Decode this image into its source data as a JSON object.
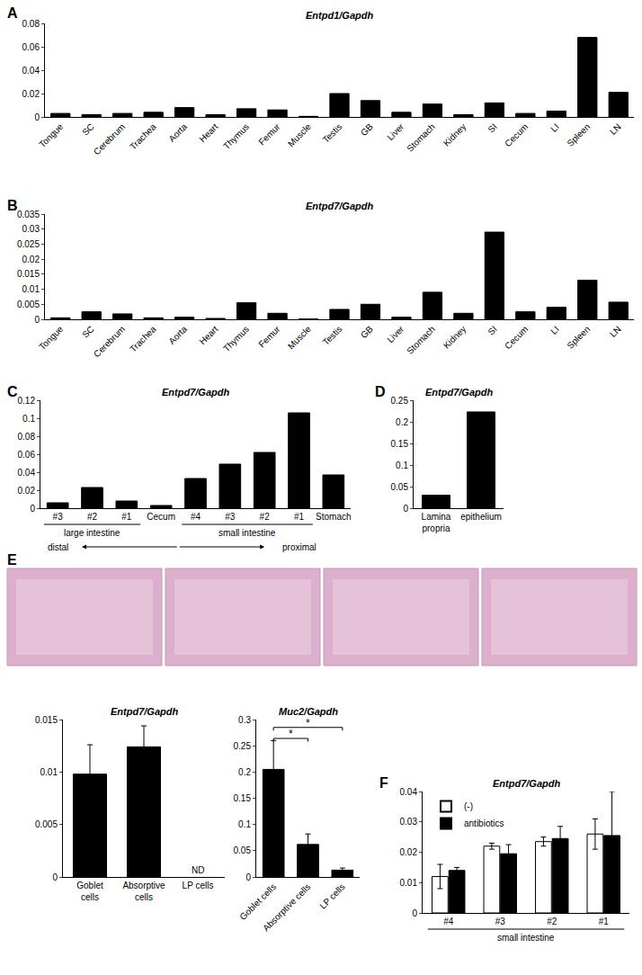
{
  "chart_data": [
    {
      "type": "bar",
      "panel": "A",
      "title": "Entpd1/Gapdh",
      "categories": [
        "Tongue",
        "SC",
        "Cerebrum",
        "Trachea",
        "Aorta",
        "Heart",
        "Thymus",
        "Femur",
        "Muscle",
        "Testis",
        "GB",
        "Liver",
        "Stomach",
        "Kidney",
        "SI",
        "Cecum",
        "LI",
        "Spleen",
        "LN"
      ],
      "values": [
        0.003,
        0.002,
        0.003,
        0.004,
        0.008,
        0.002,
        0.007,
        0.006,
        0.0005,
        0.02,
        0.014,
        0.004,
        0.011,
        0.002,
        0.012,
        0.003,
        0.005,
        0.068,
        0.021
      ],
      "color": "#000000",
      "ylim": [
        0,
        0.08
      ],
      "yticks": [
        0,
        0.02,
        0.04,
        0.06,
        0.08
      ],
      "grid": false
    },
    {
      "type": "bar",
      "panel": "B",
      "title": "Entpd7/Gapdh",
      "categories": [
        "Tongue",
        "SC",
        "Cerebrum",
        "Trachea",
        "Aorta",
        "Heart",
        "Thymus",
        "Femur",
        "Muscle",
        "Testis",
        "GB",
        "Liver",
        "Stomach",
        "Kidney",
        "SI",
        "Cecum",
        "LI",
        "Spleen",
        "LN"
      ],
      "values": [
        0.0005,
        0.0025,
        0.0018,
        0.0005,
        0.0007,
        0.0003,
        0.0055,
        0.002,
        0.0001,
        0.0033,
        0.005,
        0.0007,
        0.009,
        0.002,
        0.029,
        0.0025,
        0.004,
        0.013,
        0.0057
      ],
      "color": "#000000",
      "ylim": [
        0,
        0.035
      ],
      "yticks": [
        0,
        0.005,
        0.01,
        0.015,
        0.02,
        0.025,
        0.03,
        0.035
      ],
      "grid": false
    },
    {
      "type": "bar",
      "panel": "C",
      "title": "Entpd7/Gapdh",
      "categories": [
        "#3",
        "#2",
        "#1",
        "Cecum",
        "#4",
        "#3",
        "#2",
        "#1",
        "Stomach"
      ],
      "values": [
        0.006,
        0.023,
        0.008,
        0.003,
        0.033,
        0.049,
        0.062,
        0.106,
        0.037
      ],
      "groups": [
        {
          "label": "large intestine",
          "start": 0,
          "end": 2
        },
        {
          "label": "small intestine",
          "start": 4,
          "end": 7
        }
      ],
      "direction": {
        "left": "distal",
        "right": "proximal"
      },
      "color": "#000000",
      "ylim": [
        0,
        0.12
      ],
      "yticks": [
        0,
        0.02,
        0.04,
        0.06,
        0.08,
        0.1,
        0.12
      ],
      "grid": false
    },
    {
      "type": "bar",
      "panel": "D",
      "title": "Entpd7/Gapdh",
      "categories": [
        "Lamina propria",
        "epithelium"
      ],
      "values": [
        0.03,
        0.223
      ],
      "color": "#000000",
      "ylim": [
        0,
        0.25
      ],
      "yticks": [
        0,
        0.05,
        0.1,
        0.15,
        0.2,
        0.25
      ],
      "grid": false
    },
    {
      "type": "bar",
      "panel": "E",
      "title": "Entpd7/Gapdh",
      "categories": [
        "Goblet cells",
        "Absorptive cells",
        "LP cells"
      ],
      "values": [
        0.0098,
        0.0124,
        null
      ],
      "errors": [
        0.0028,
        0.002,
        null
      ],
      "value_labels": [
        null,
        null,
        "ND"
      ],
      "color": "#000000",
      "ylim": [
        0,
        0.015
      ],
      "yticks": [
        0,
        0.005,
        0.01,
        0.015
      ],
      "grid": false
    },
    {
      "type": "bar",
      "title": "Muc2/Gapdh",
      "categories": [
        "Goblet cells",
        "Absorptive cells",
        "LP cells"
      ],
      "values": [
        0.205,
        0.062,
        0.013
      ],
      "errors": [
        0.055,
        0.02,
        0.004
      ],
      "significance": [
        {
          "between": [
            "Goblet cells",
            "Absorptive cells"
          ],
          "label": "*"
        },
        {
          "between": [
            "Goblet cells",
            "LP cells"
          ],
          "label": "*"
        }
      ],
      "color": "#000000",
      "ylim": [
        0,
        0.3
      ],
      "yticks": [
        0,
        0.05,
        0.1,
        0.15,
        0.2,
        0.25,
        0.3
      ],
      "grid": false
    },
    {
      "type": "bar",
      "panel": "F",
      "title": "Entpd7/Gapdh",
      "categories": [
        "#4",
        "#3",
        "#2",
        "#1"
      ],
      "series": [
        {
          "name": "(-)",
          "color": "#ffffff",
          "values": [
            0.012,
            0.022,
            0.0235,
            0.026
          ],
          "errors": [
            0.004,
            0.001,
            0.0015,
            0.005
          ]
        },
        {
          "name": "antibiotics",
          "color": "#000000",
          "values": [
            0.014,
            0.0195,
            0.0245,
            0.0255
          ],
          "errors": [
            0.001,
            0.003,
            0.004,
            0.0145
          ]
        }
      ],
      "groups": [
        {
          "label": "small intestine",
          "start": 0,
          "end": 3
        }
      ],
      "legend": "upper left",
      "ylim": [
        0,
        0.04
      ],
      "yticks": [
        0,
        0.01,
        0.02,
        0.03,
        0.04
      ],
      "grid": false
    }
  ]
}
